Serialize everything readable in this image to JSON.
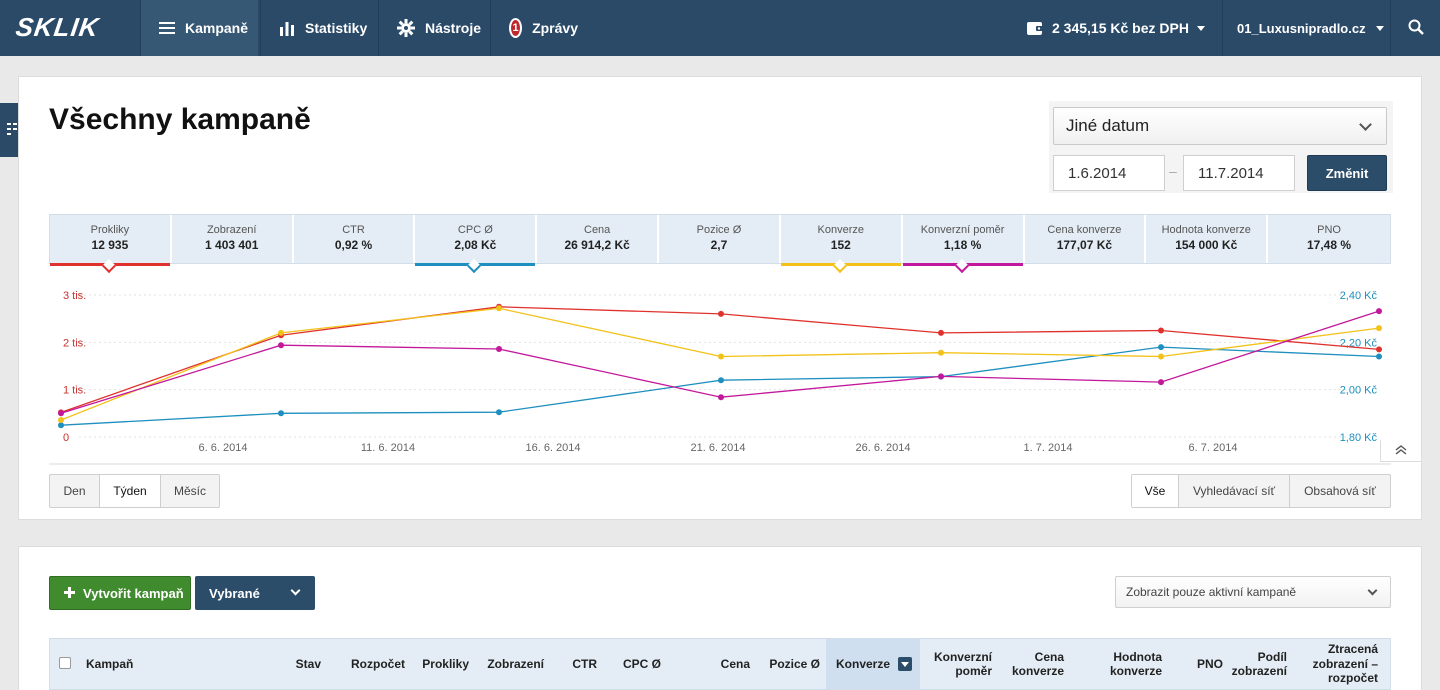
{
  "app": {
    "logo": "SKLIK"
  },
  "nav": {
    "items": [
      {
        "label": "Kampaně",
        "icon": "menu-icon"
      },
      {
        "label": "Statistiky",
        "icon": "bar-chart-icon"
      },
      {
        "label": "Nástroje",
        "icon": "gear-icon"
      },
      {
        "label": "Zprávy",
        "icon": "badge",
        "badge": "1"
      }
    ],
    "wallet": "2 345,15 Kč bez DPH",
    "account": "01_Luxusnipradlo.cz"
  },
  "page": {
    "title": "Všechny kampaně"
  },
  "date": {
    "preset": "Jiné datum",
    "from": "1.6.2014",
    "to": "11.7.2014",
    "dash": "–",
    "change_label": "Změnit"
  },
  "metrics": [
    {
      "label": "Prokliky",
      "value": "12 935",
      "color": "#e0322d"
    },
    {
      "label": "Zobrazení",
      "value": "1 403 401"
    },
    {
      "label": "CTR",
      "value": "0,92 %"
    },
    {
      "label": "CPC Ø",
      "value": "2,08 Kč",
      "color": "#1e8fbf"
    },
    {
      "label": "Cena",
      "value": "26 914,2 Kč"
    },
    {
      "label": "Pozice Ø",
      "value": "2,7"
    },
    {
      "label": "Konverze",
      "value": "152",
      "color": "#f2c219"
    },
    {
      "label": "Konverzní poměr",
      "value": "1,18 %",
      "color": "#c2189b"
    },
    {
      "label": "Cena konverze",
      "value": "177,07 Kč"
    },
    {
      "label": "Hodnota konverze",
      "value": "154 000 Kč"
    },
    {
      "label": "PNO",
      "value": "17,48 %"
    }
  ],
  "chart_data": {
    "type": "line",
    "x_labels": [
      "6. 6. 2014",
      "11. 6. 2014",
      "16. 6. 2014",
      "21. 6. 2014",
      "26. 6. 2014",
      "1. 7. 2014",
      "6. 7. 2014"
    ],
    "left_ticks": [
      "3 tis.",
      "2 tis.",
      "1 tis.",
      "0"
    ],
    "right_ticks": [
      "2,40 Kč",
      "2,20 Kč",
      "2,00 Kč",
      "1,80 Kč"
    ],
    "ylim_left": [
      0,
      3000
    ],
    "ylim_right": [
      1.8,
      2.4
    ],
    "colors": {
      "red": "#e0322d",
      "blue": "#1e8fbf",
      "yellow": "#f2c219",
      "magenta": "#c2189b"
    },
    "series": [
      {
        "metric": "Prokliky",
        "color": "#e0322d",
        "axis": "left",
        "values": [
          520,
          2150,
          2750,
          2600,
          2200,
          2250,
          1850
        ]
      },
      {
        "metric": "CPC Ø",
        "color": "#1e8fbf",
        "axis": "right",
        "values": [
          1.85,
          1.9,
          1.905,
          2.04,
          2.055,
          2.18,
          2.14
        ]
      },
      {
        "metric": "Konverze",
        "color": "#f2c219",
        "axis": "left",
        "values": [
          360,
          2200,
          2720,
          1700,
          1780,
          1700,
          2300
        ]
      },
      {
        "metric": "Konverzní poměr",
        "color": "#c2189b",
        "axis": "left",
        "values": [
          500,
          1940,
          1860,
          840,
          1280,
          1160,
          2660
        ]
      }
    ]
  },
  "period_tabs": [
    "Den",
    "Týden",
    "Měsíc"
  ],
  "period_active": "Týden",
  "network_tabs": [
    "Vše",
    "Vyhledávací síť",
    "Obsahová síť"
  ],
  "network_active": "Vše",
  "toolbar": {
    "create_label": "Vytvořit kampaň",
    "selected_label": "Vybrané",
    "filter_label": "Zobrazit pouze aktivní kampaně"
  },
  "table": {
    "columns": [
      "Kampaň",
      "Stav",
      "Rozpočet",
      "Prokliky",
      "Zobrazení",
      "CTR",
      "CPC Ø",
      "Cena",
      "Pozice Ø",
      "Konverze",
      "Konverzní poměr",
      "Cena konverze",
      "Hodnota konverze",
      "PNO",
      "Podíl zobrazení",
      "Ztracená zobrazení – rozpočet"
    ],
    "sorted_column": "Konverze"
  }
}
